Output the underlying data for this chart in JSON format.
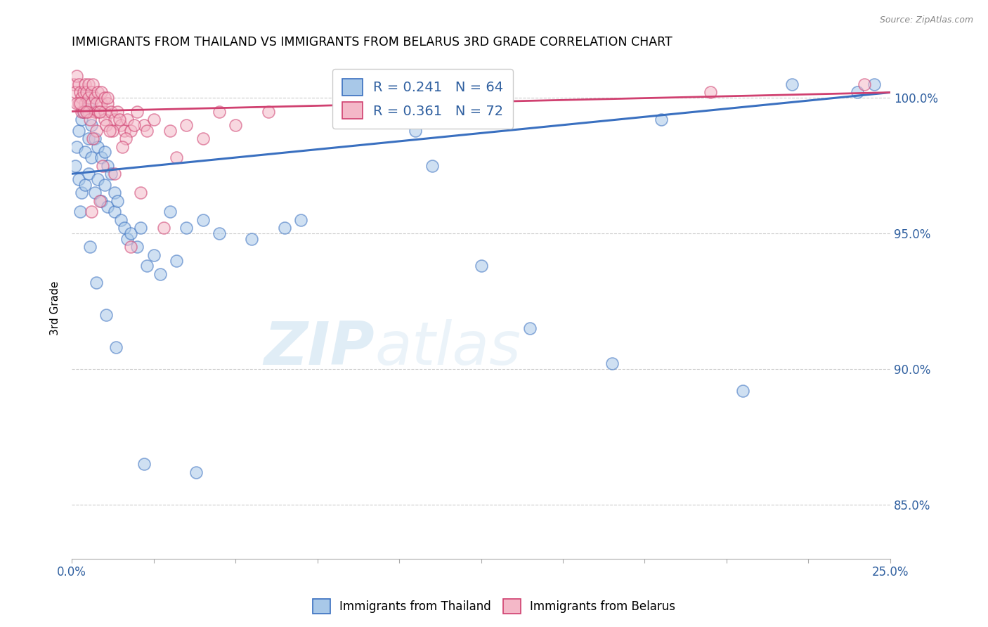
{
  "title": "IMMIGRANTS FROM THAILAND VS IMMIGRANTS FROM BELARUS 3RD GRADE CORRELATION CHART",
  "source": "Source: ZipAtlas.com",
  "ylabel": "3rd Grade",
  "xlim": [
    0.0,
    25.0
  ],
  "ylim": [
    83.0,
    101.5
  ],
  "y_ticks": [
    85.0,
    90.0,
    95.0,
    100.0
  ],
  "y_tick_labels": [
    "85.0%",
    "90.0%",
    "95.0%",
    "100.0%"
  ],
  "r_thailand": 0.241,
  "n_thailand": 64,
  "r_belarus": 0.361,
  "n_belarus": 72,
  "thailand_color": "#a8c8e8",
  "belarus_color": "#f4b8c8",
  "thailand_line_color": "#3a70c0",
  "belarus_line_color": "#d04070",
  "watermark_zip": "ZIP",
  "watermark_atlas": "atlas",
  "thailand_x": [
    0.1,
    0.15,
    0.2,
    0.2,
    0.3,
    0.3,
    0.35,
    0.4,
    0.4,
    0.5,
    0.5,
    0.5,
    0.6,
    0.6,
    0.7,
    0.7,
    0.8,
    0.8,
    0.9,
    0.9,
    1.0,
    1.0,
    1.1,
    1.1,
    1.2,
    1.3,
    1.3,
    1.4,
    1.5,
    1.6,
    1.7,
    1.8,
    2.0,
    2.1,
    2.3,
    2.5,
    2.7,
    3.0,
    3.2,
    3.5,
    4.0,
    4.5,
    5.5,
    6.5,
    7.0,
    8.5,
    9.5,
    10.5,
    11.0,
    12.5,
    14.0,
    16.5,
    18.0,
    20.5,
    22.0,
    24.0,
    24.5,
    0.25,
    0.55,
    0.75,
    1.05,
    1.35,
    2.2,
    3.8
  ],
  "thailand_y": [
    97.5,
    98.2,
    98.8,
    97.0,
    99.2,
    96.5,
    99.5,
    98.0,
    96.8,
    99.8,
    98.5,
    97.2,
    99.0,
    97.8,
    98.5,
    96.5,
    98.2,
    97.0,
    97.8,
    96.2,
    98.0,
    96.8,
    97.5,
    96.0,
    97.2,
    96.5,
    95.8,
    96.2,
    95.5,
    95.2,
    94.8,
    95.0,
    94.5,
    95.2,
    93.8,
    94.2,
    93.5,
    95.8,
    94.0,
    95.2,
    95.5,
    95.0,
    94.8,
    95.2,
    95.5,
    100.2,
    99.2,
    98.8,
    97.5,
    93.8,
    91.5,
    90.2,
    99.2,
    89.2,
    100.5,
    100.2,
    100.5,
    95.8,
    94.5,
    93.2,
    92.0,
    90.8,
    86.5,
    86.2
  ],
  "belarus_x": [
    0.05,
    0.1,
    0.15,
    0.2,
    0.2,
    0.25,
    0.3,
    0.3,
    0.35,
    0.4,
    0.4,
    0.45,
    0.5,
    0.5,
    0.5,
    0.6,
    0.6,
    0.65,
    0.7,
    0.7,
    0.75,
    0.8,
    0.8,
    0.9,
    0.9,
    1.0,
    1.0,
    1.0,
    1.1,
    1.1,
    1.2,
    1.3,
    1.4,
    1.5,
    1.6,
    1.7,
    1.8,
    2.0,
    2.2,
    2.5,
    3.0,
    3.5,
    4.0,
    5.0,
    6.0,
    0.15,
    0.35,
    0.55,
    0.75,
    0.85,
    1.05,
    1.25,
    1.45,
    1.65,
    1.9,
    2.3,
    2.8,
    4.5,
    19.5,
    24.2,
    0.25,
    0.45,
    0.65,
    0.95,
    1.15,
    1.55,
    2.1,
    3.2,
    0.6,
    0.85,
    1.3,
    1.8
  ],
  "belarus_y": [
    100.5,
    100.2,
    100.8,
    100.5,
    99.8,
    100.2,
    100.0,
    99.5,
    100.2,
    100.5,
    99.8,
    100.2,
    100.5,
    99.5,
    100.0,
    100.2,
    99.8,
    100.5,
    99.5,
    100.0,
    99.8,
    100.2,
    99.5,
    99.8,
    100.2,
    100.0,
    99.5,
    99.2,
    99.8,
    100.0,
    99.5,
    99.2,
    99.5,
    99.0,
    98.8,
    99.2,
    98.8,
    99.5,
    99.0,
    99.2,
    98.8,
    99.0,
    98.5,
    99.0,
    99.5,
    99.8,
    99.5,
    99.2,
    98.8,
    99.5,
    99.0,
    98.8,
    99.2,
    98.5,
    99.0,
    98.8,
    95.2,
    99.5,
    100.2,
    100.5,
    99.8,
    99.5,
    98.5,
    97.5,
    98.8,
    98.2,
    96.5,
    97.8,
    95.8,
    96.2,
    97.2,
    94.5
  ]
}
